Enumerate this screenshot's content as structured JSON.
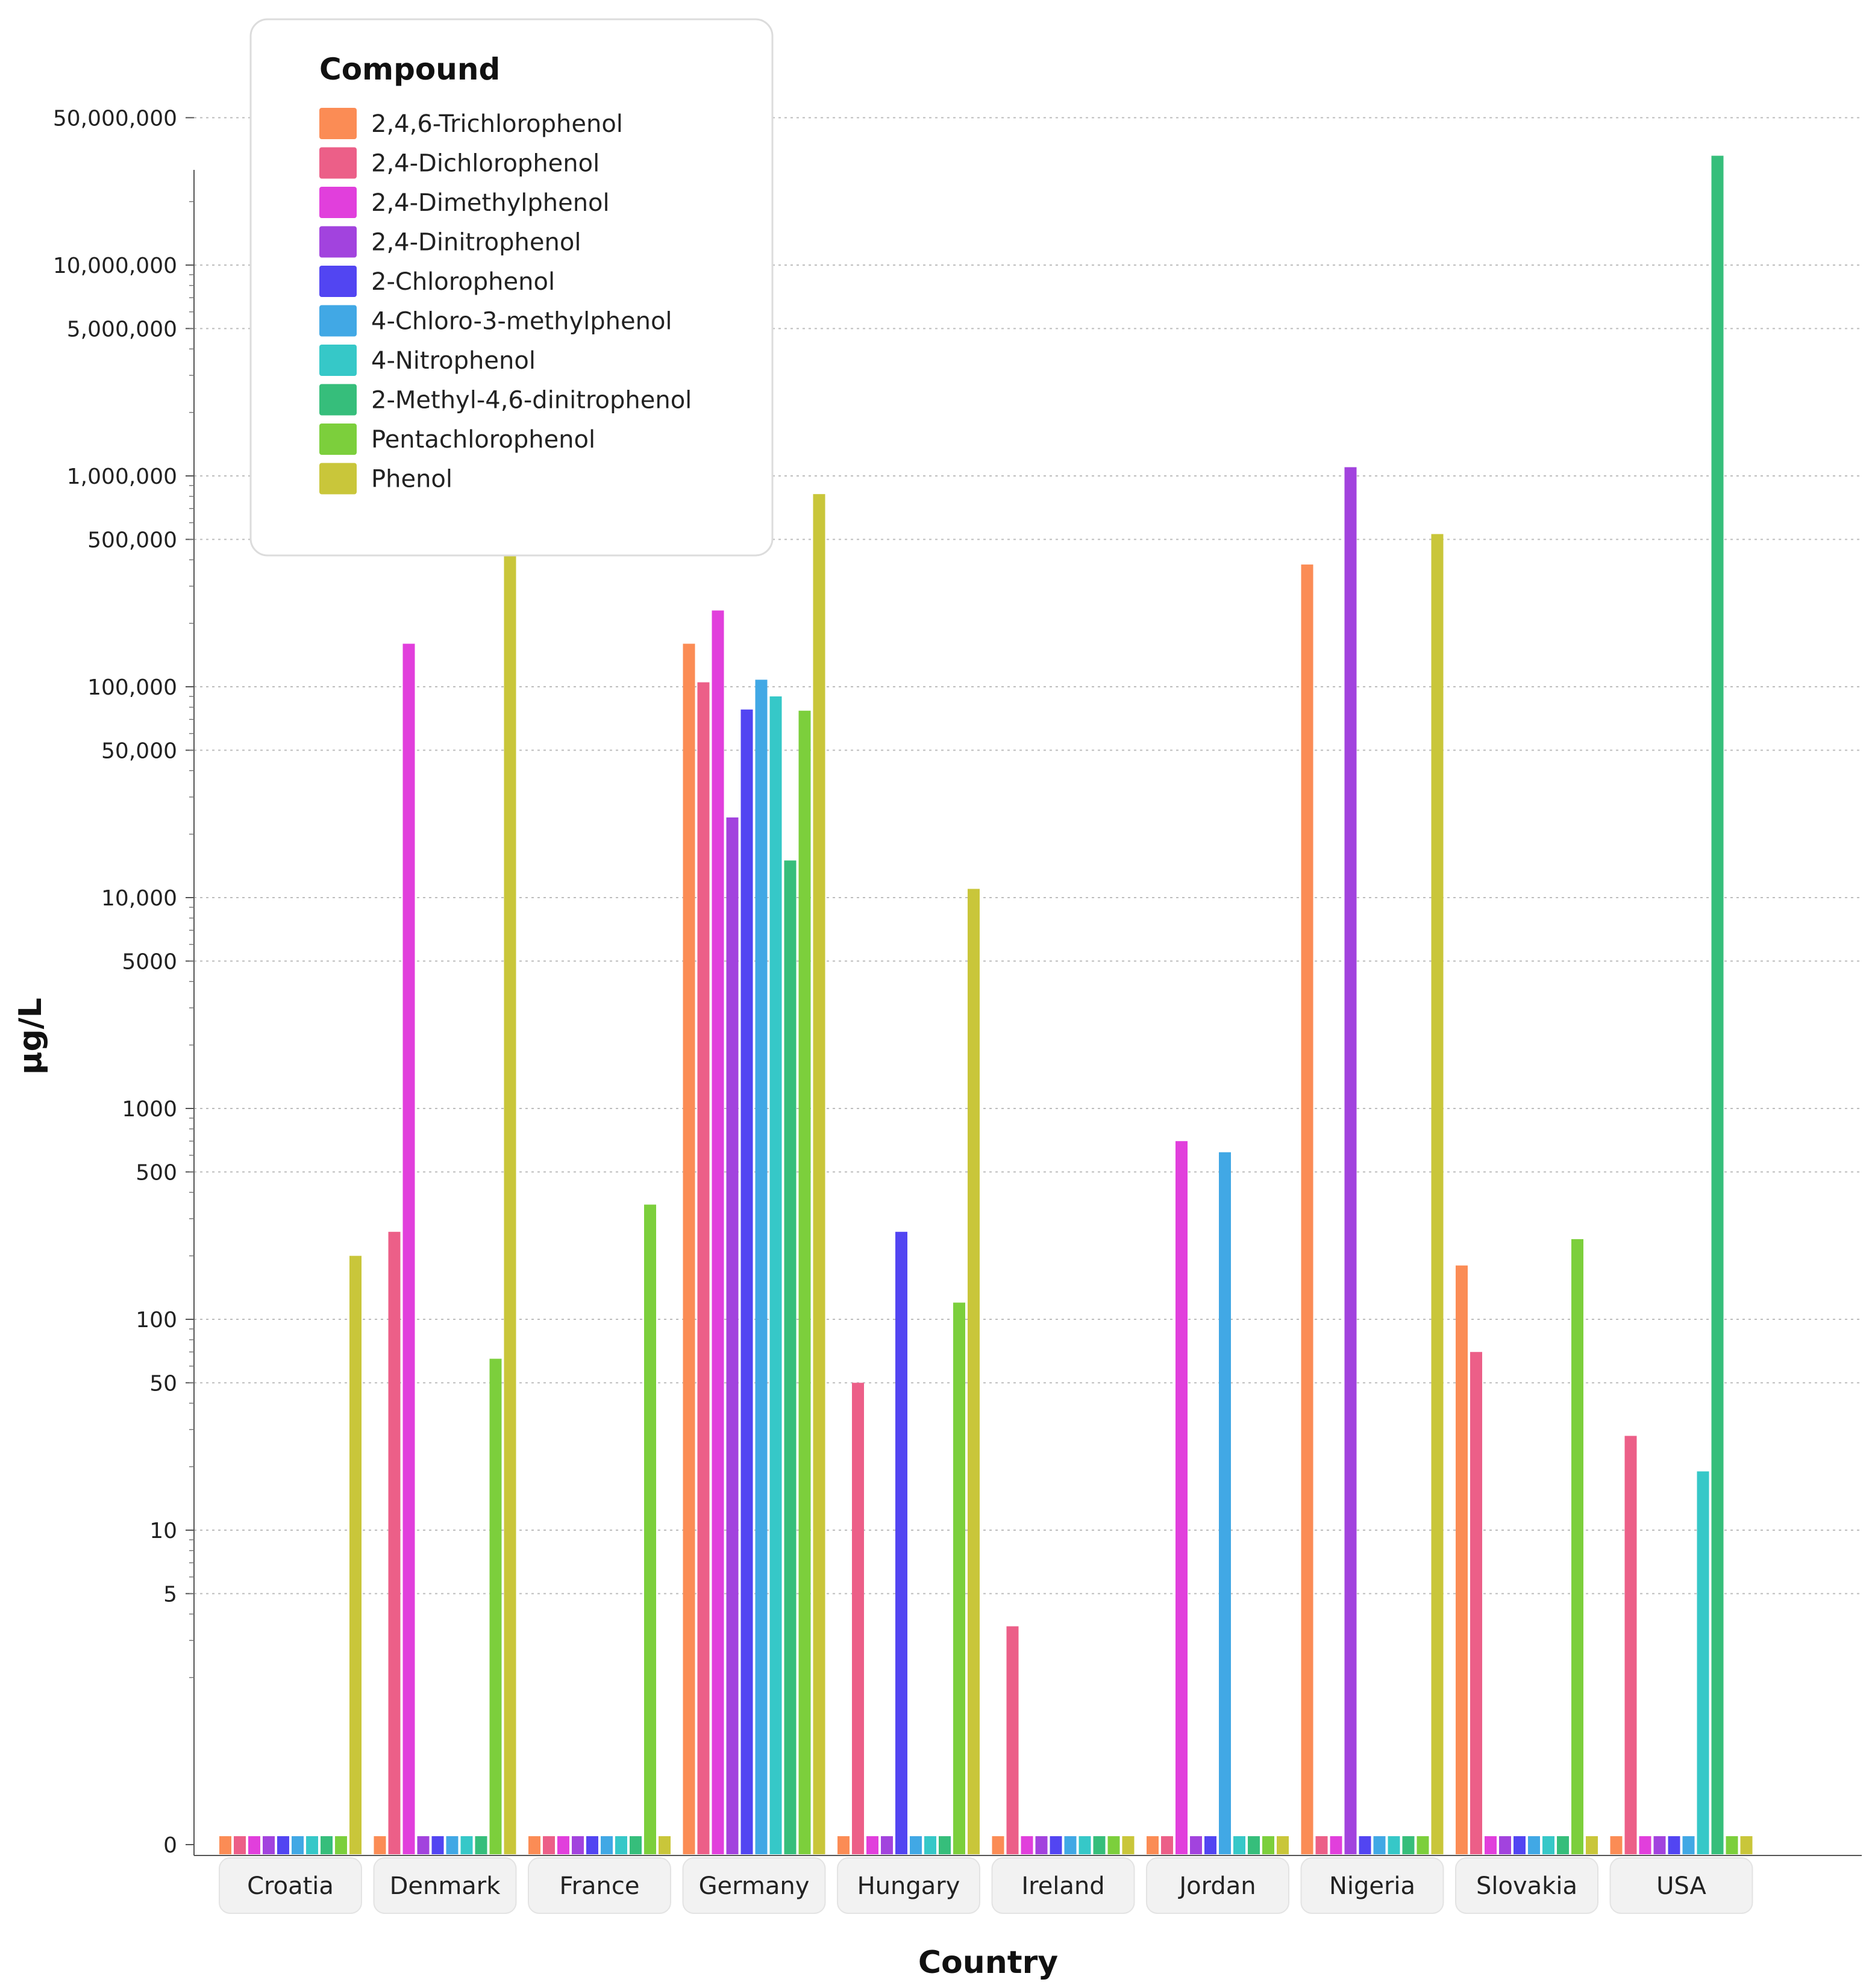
{
  "chart_data": {
    "type": "bar",
    "scale": "log (symlog, 0 at base)",
    "xlabel": "Country",
    "ylabel": "µg/L",
    "legend_title": "Compound",
    "legend_position": "top-left",
    "grid": true,
    "y_ticks": [
      {
        "value": 0,
        "label": "0"
      },
      {
        "value": 5,
        "label": "5"
      },
      {
        "value": 10,
        "label": "10"
      },
      {
        "value": 50,
        "label": "50"
      },
      {
        "value": 100,
        "label": "100"
      },
      {
        "value": 500,
        "label": "500"
      },
      {
        "value": 1000,
        "label": "1000"
      },
      {
        "value": 5000,
        "label": "5000"
      },
      {
        "value": 10000,
        "label": "10,000"
      },
      {
        "value": 50000,
        "label": "50,000"
      },
      {
        "value": 100000,
        "label": "100,000"
      },
      {
        "value": 500000,
        "label": "500,000"
      },
      {
        "value": 1000000,
        "label": "1,000,000"
      },
      {
        "value": 5000000,
        "label": "5,000,000"
      },
      {
        "value": 10000000,
        "label": "10,000,000"
      },
      {
        "value": 50000000,
        "label": "50,000,000"
      }
    ],
    "categories": [
      "Croatia",
      "Denmark",
      "France",
      "Germany",
      "Hungary",
      "Ireland",
      "Jordan",
      "Nigeria",
      "Slovakia",
      "USA"
    ],
    "series": [
      {
        "name": "2,4,6-Trichlorophenol",
        "color": "#fb8c55",
        "values": [
          0,
          0,
          0,
          160000,
          0,
          0,
          0,
          380000,
          180,
          0
        ]
      },
      {
        "name": "2,4-Dichlorophenol",
        "color": "#ec5f88",
        "values": [
          0,
          260,
          0,
          105000,
          50,
          3.5,
          0,
          0,
          70,
          28
        ]
      },
      {
        "name": "2,4-Dimethylphenol",
        "color": "#e13fdc",
        "values": [
          0,
          160000,
          0,
          230000,
          0,
          0,
          700,
          0,
          0,
          0
        ]
      },
      {
        "name": "2,4-Dinitrophenol",
        "color": "#a243de",
        "values": [
          0,
          0,
          0,
          24000,
          0,
          0,
          0,
          1100000,
          0,
          0
        ]
      },
      {
        "name": "2-Chlorophenol",
        "color": "#5245f2",
        "values": [
          0,
          0,
          0,
          78000,
          260,
          0,
          0,
          0,
          0,
          0
        ]
      },
      {
        "name": "4-Chloro-3-methylphenol",
        "color": "#41a8e5",
        "values": [
          0,
          0,
          0,
          108000,
          0,
          0,
          620,
          0,
          0,
          0
        ]
      },
      {
        "name": "4-Nitrophenol",
        "color": "#36c8c8",
        "values": [
          0,
          0,
          0,
          90000,
          0,
          0,
          0,
          0,
          0,
          19
        ]
      },
      {
        "name": "2-Methyl-4,6-dinitrophenol",
        "color": "#36be7b",
        "values": [
          0,
          0,
          0,
          15000,
          0,
          0,
          0,
          0,
          0,
          33000000
        ]
      },
      {
        "name": "Pentachlorophenol",
        "color": "#7ccf3c",
        "values": [
          0,
          65,
          350,
          77000,
          120,
          0,
          0,
          0,
          240,
          0
        ]
      },
      {
        "name": "Phenol",
        "color": "#c9c63a",
        "values": [
          200,
          480000,
          0,
          820000,
          11000,
          0,
          0,
          530000,
          0,
          0
        ]
      }
    ]
  }
}
